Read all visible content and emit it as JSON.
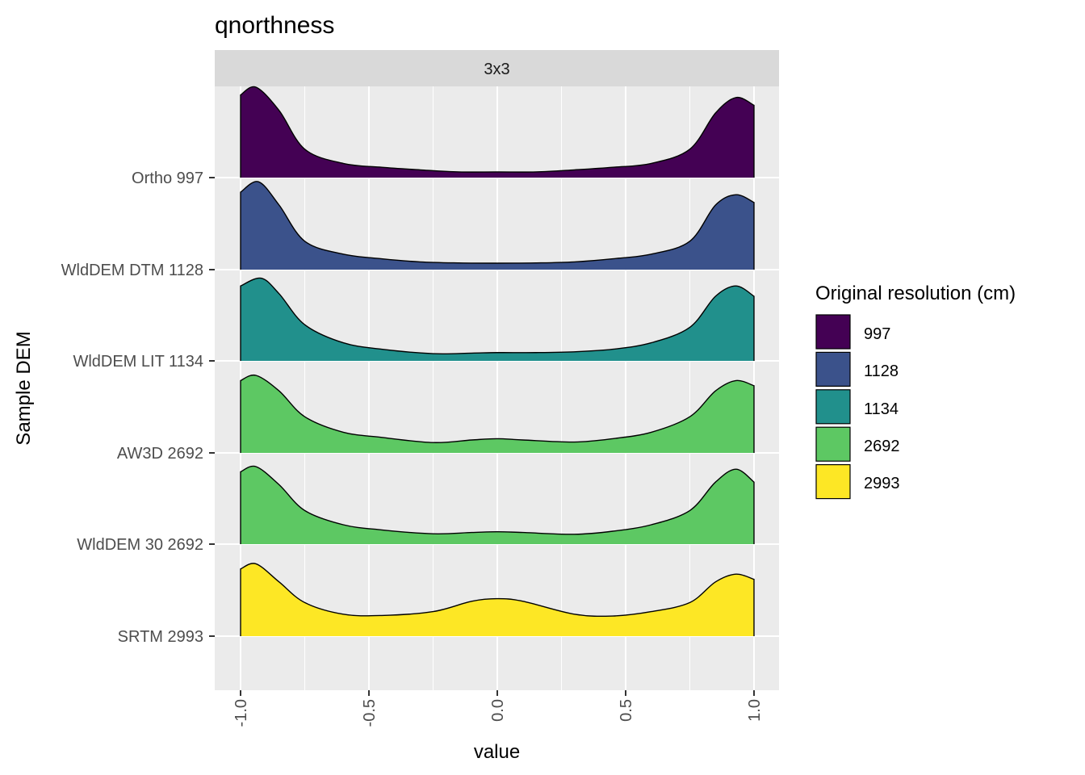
{
  "chart_data": {
    "type": "ridgeline",
    "title": "qnorthness",
    "facet": "3x3",
    "xlabel": "value",
    "ylabel": "Sample DEM",
    "xlim": [
      -1.0,
      1.0
    ],
    "x_ticks": [
      "-1.0",
      "-0.5",
      "0.0",
      "0.5",
      "1.0"
    ],
    "categories": [
      "Ortho 997",
      "WldDEM DTM 1128",
      "WldDEM LIT 1134",
      "AW3D 2692",
      "WldDEM 30 2692",
      "SRTM 2993"
    ],
    "grid": true,
    "legend": {
      "title": "Original resolution (cm)",
      "position": "right",
      "entries": [
        {
          "label": "997",
          "color": "#440154"
        },
        {
          "label": "1128",
          "color": "#3B528B"
        },
        {
          "label": "1134",
          "color": "#21908C"
        },
        {
          "label": "2692",
          "color": "#5DC863"
        },
        {
          "label": "2993",
          "color": "#FDE725"
        }
      ]
    },
    "series": [
      {
        "category": "Ortho 997",
        "resolution": "997",
        "color": "#440154",
        "x": [
          -1.0,
          -0.94,
          -0.85,
          -0.75,
          -0.6,
          -0.45,
          -0.3,
          -0.15,
          0.0,
          0.15,
          0.3,
          0.45,
          0.6,
          0.75,
          0.85,
          0.93,
          1.0
        ],
        "density": [
          3.2,
          3.5,
          2.6,
          1.1,
          0.55,
          0.4,
          0.3,
          0.22,
          0.22,
          0.22,
          0.3,
          0.4,
          0.55,
          1.1,
          2.5,
          3.1,
          2.8
        ]
      },
      {
        "category": "WldDEM DTM 1128",
        "resolution": "1128",
        "color": "#3B528B",
        "x": [
          -1.0,
          -0.93,
          -0.85,
          -0.75,
          -0.6,
          -0.45,
          -0.3,
          -0.15,
          0.0,
          0.15,
          0.3,
          0.45,
          0.6,
          0.75,
          0.85,
          0.93,
          1.0
        ],
        "density": [
          3.0,
          3.4,
          2.5,
          1.1,
          0.6,
          0.42,
          0.3,
          0.26,
          0.25,
          0.26,
          0.3,
          0.42,
          0.6,
          1.1,
          2.5,
          2.9,
          2.6
        ]
      },
      {
        "category": "WldDEM LIT 1134",
        "resolution": "1134",
        "color": "#21908C",
        "x": [
          -1.0,
          -0.92,
          -0.85,
          -0.75,
          -0.6,
          -0.45,
          -0.25,
          -0.1,
          0.0,
          0.15,
          0.3,
          0.45,
          0.6,
          0.75,
          0.85,
          0.93,
          1.0
        ],
        "density": [
          2.9,
          3.2,
          2.6,
          1.4,
          0.7,
          0.45,
          0.28,
          0.3,
          0.32,
          0.32,
          0.35,
          0.45,
          0.7,
          1.3,
          2.5,
          2.9,
          2.5
        ]
      },
      {
        "category": "AW3D 2692",
        "resolution": "2692",
        "color": "#5DC863",
        "x": [
          -1.0,
          -0.94,
          -0.85,
          -0.75,
          -0.6,
          -0.45,
          -0.25,
          -0.1,
          0.0,
          0.1,
          0.3,
          0.45,
          0.6,
          0.75,
          0.85,
          0.93,
          1.0
        ],
        "density": [
          2.8,
          3.0,
          2.4,
          1.4,
          0.8,
          0.6,
          0.4,
          0.5,
          0.55,
          0.5,
          0.42,
          0.55,
          0.8,
          1.4,
          2.4,
          2.8,
          2.6
        ]
      },
      {
        "category": "WldDEM 30 2692",
        "resolution": "2692",
        "color": "#5DC863",
        "x": [
          -1.0,
          -0.94,
          -0.85,
          -0.75,
          -0.6,
          -0.45,
          -0.25,
          -0.1,
          0.0,
          0.1,
          0.3,
          0.45,
          0.6,
          0.75,
          0.85,
          0.93,
          1.0
        ],
        "density": [
          2.8,
          3.0,
          2.3,
          1.3,
          0.75,
          0.55,
          0.4,
          0.45,
          0.48,
          0.45,
          0.38,
          0.5,
          0.75,
          1.3,
          2.4,
          2.9,
          2.4
        ]
      },
      {
        "category": "SRTM 2993",
        "resolution": "2993",
        "color": "#FDE725",
        "x": [
          -1.0,
          -0.94,
          -0.85,
          -0.75,
          -0.6,
          -0.45,
          -0.25,
          -0.1,
          0.0,
          0.1,
          0.3,
          0.45,
          0.6,
          0.75,
          0.85,
          0.93,
          1.0
        ],
        "density": [
          2.6,
          2.8,
          2.1,
          1.3,
          0.85,
          0.8,
          0.95,
          1.35,
          1.45,
          1.35,
          0.85,
          0.78,
          0.95,
          1.3,
          2.1,
          2.4,
          2.2
        ]
      }
    ]
  }
}
